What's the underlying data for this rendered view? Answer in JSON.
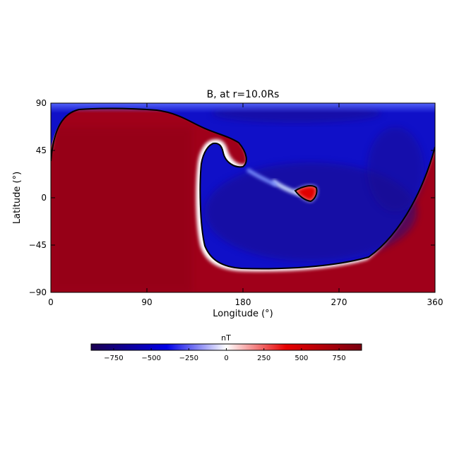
{
  "chart_data": {
    "type": "heatmap",
    "title": "B, at r=10.0Rs",
    "xlabel": "Longitude (°)",
    "ylabel": "Latitude (°)",
    "xlim": [
      0,
      360
    ],
    "ylim": [
      -90,
      90
    ],
    "x_ticks": [
      "0",
      "90",
      "180",
      "270",
      "360"
    ],
    "y_ticks": [
      "90",
      "45",
      "0",
      "−45",
      "−90"
    ],
    "colorbar": {
      "label": "nT",
      "range": [
        -900,
        900
      ],
      "ticks": [
        "−750",
        "−500",
        "−250",
        "0",
        "250",
        "500",
        "750"
      ],
      "colors": [
        "#1a0050",
        "#0000e6",
        "#ffffff",
        "#e60000",
        "#7a0010"
      ]
    },
    "contour_level": 0,
    "regions": [
      {
        "sign": "positive",
        "description_value": 800,
        "lon_range": [
          0,
          140
        ],
        "lat_range": [
          -90,
          88
        ]
      },
      {
        "sign": "negative",
        "description_value": -800,
        "lon_range": [
          140,
          360
        ],
        "lat_range": [
          -72,
          90
        ]
      },
      {
        "sign": "positive",
        "description_value": 800,
        "lon_range": [
          140,
          360
        ],
        "lat_range": [
          -90,
          -72
        ]
      },
      {
        "sign": "positive",
        "description_value": 600,
        "lon_center": 240,
        "lat_center": 5
      }
    ]
  }
}
